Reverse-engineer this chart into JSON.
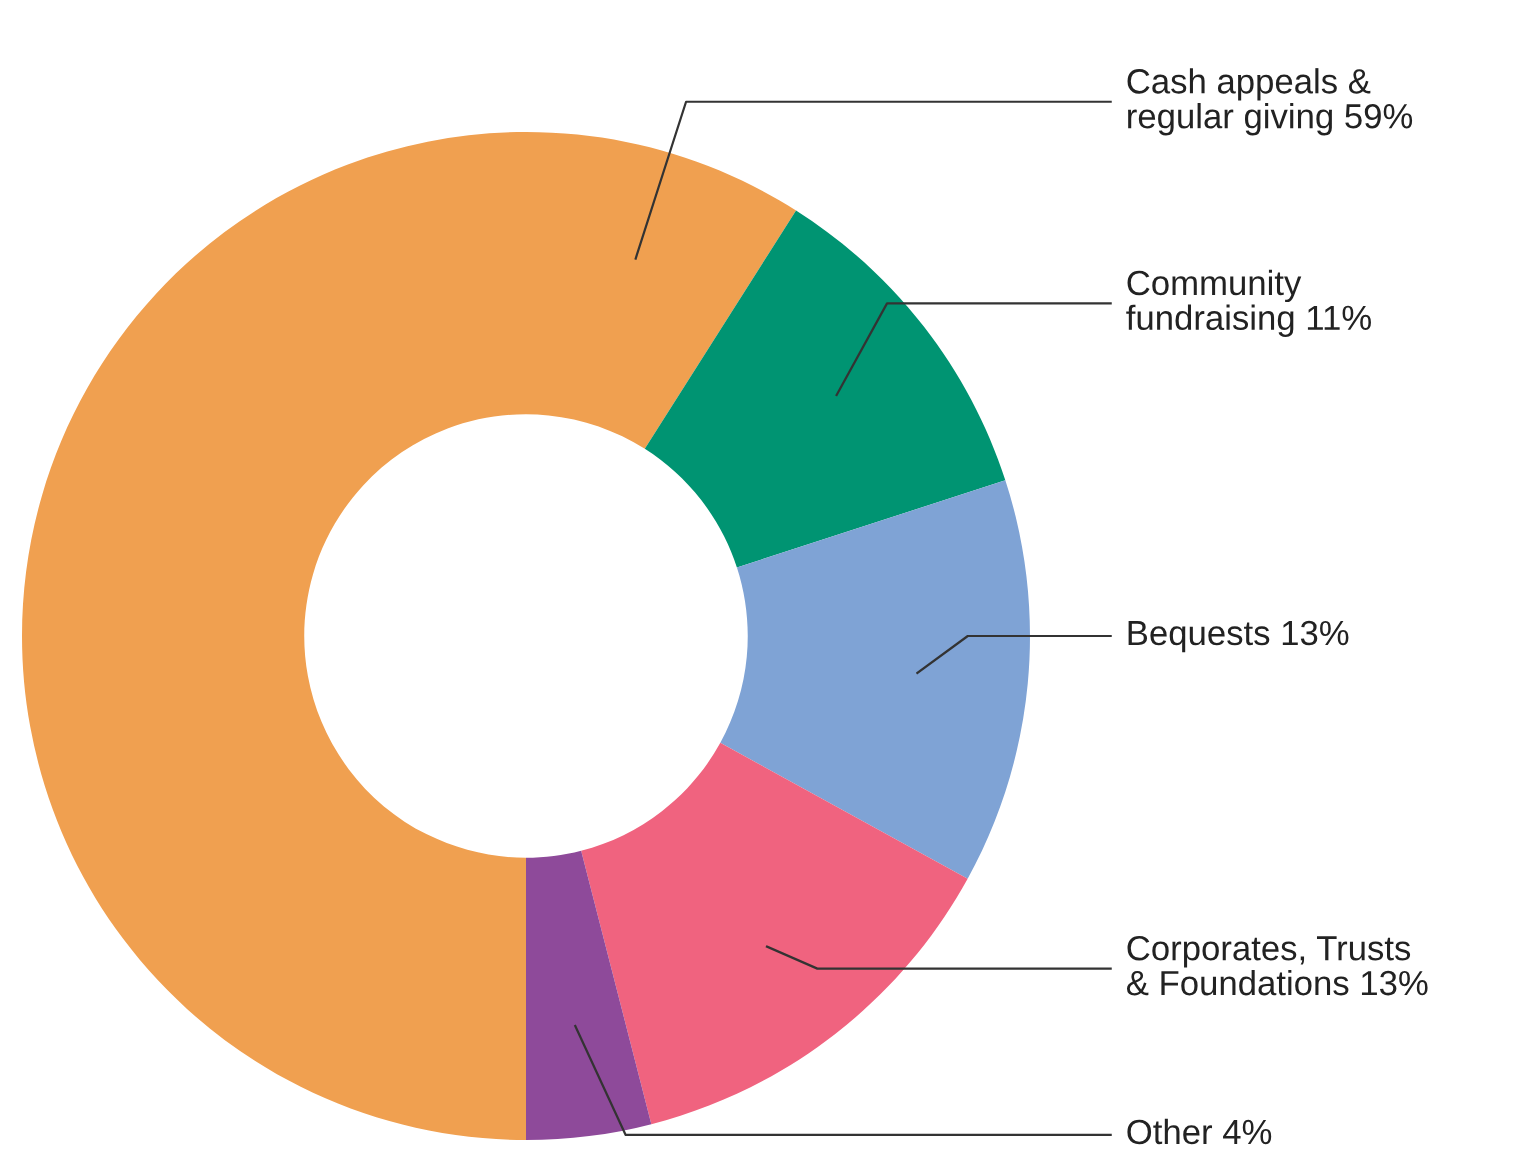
{
  "chart_data": {
    "type": "donut",
    "categories": [
      "Cash appeals &\nregular giving",
      "Community\nfundraising",
      "Bequests",
      "Corporates, Trusts\n& Foundations",
      "Other"
    ],
    "values": [
      59,
      11,
      13,
      13,
      4
    ],
    "value_labels": [
      "59%",
      "11%",
      "13%",
      "13%",
      "4%"
    ],
    "colors": [
      "#f0a050",
      "#009472",
      "#7fa3d5",
      "#f0637f",
      "#8e4a9a"
    ],
    "legend": false
  }
}
